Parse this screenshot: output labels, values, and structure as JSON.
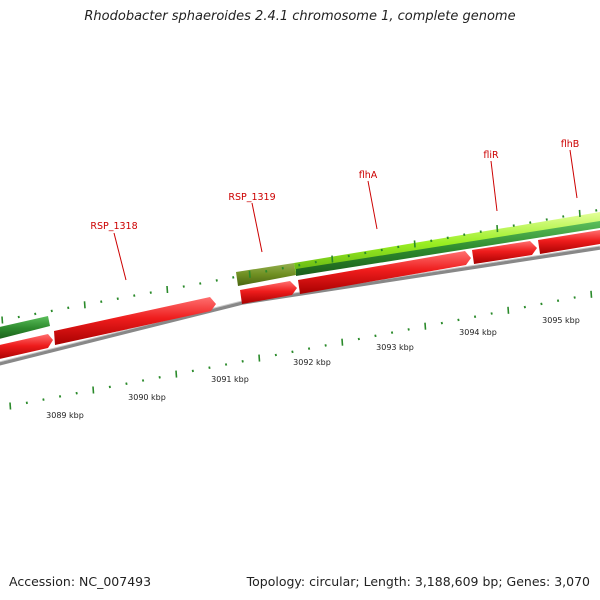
{
  "title": "Rhodobacter sphaeroides 2.4.1 chromosome 1, complete genome",
  "accession_text": "Accession: NC_007493",
  "summary_text": "Topology: circular; Length: 3,188,609 bp; Genes: 3,070",
  "gene_labels": [
    "RSP_1318",
    "RSP_1319",
    "flhA",
    "fliR",
    "flhB"
  ],
  "scale_labels": [
    "3089 kbp",
    "3090 kbp",
    "3091 kbp",
    "3092 kbp",
    "3093 kbp",
    "3094 kbp",
    "3095 kbp"
  ],
  "colors": {
    "forward_gene": "#e01818",
    "orf_light": "#99ee22",
    "orf_dark": "#2e8b2e",
    "orf_olive": "#6f8f22",
    "backbone": "#888888",
    "tick": "#2a8a2a",
    "label": "#cc0000"
  }
}
